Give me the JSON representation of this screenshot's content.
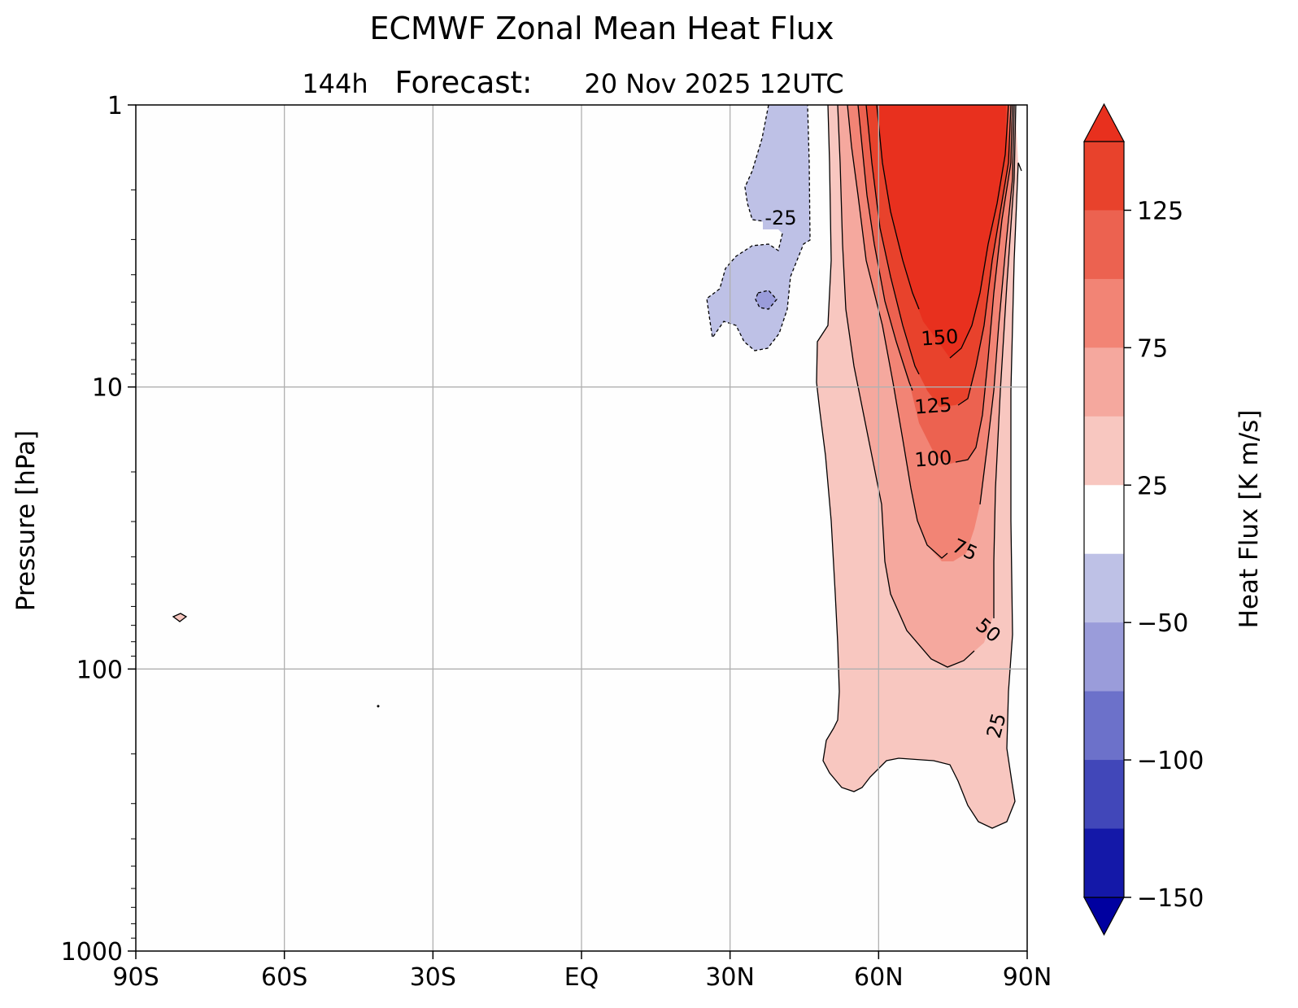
{
  "chart_data": {
    "type": "heatmap",
    "title": "ECMWF Zonal Mean Heat Flux",
    "subtitle": {
      "lead": "144h",
      "label": "Forecast:",
      "date": "20 Nov 2025  12UTC"
    },
    "xlabel": "",
    "ylabel": "Pressure [hPa]",
    "x_ticks": [
      "90S",
      "60S",
      "30S",
      "EQ",
      "30N",
      "60N",
      "90N"
    ],
    "y_ticks": [
      "1",
      "10",
      "100",
      "1000"
    ],
    "xlim": [
      -90,
      90
    ],
    "ylim_hpa": [
      1000,
      1
    ],
    "y_scale": "log",
    "grid": true,
    "colorbar": {
      "label": "Heat Flux [K  m/s]",
      "levels": [
        -150,
        -125,
        -100,
        -75,
        -50,
        -25,
        25,
        50,
        75,
        100,
        125,
        150
      ],
      "tick_labels": [
        "125",
        "75",
        "25",
        "−50",
        "−100",
        "−150"
      ],
      "tick_values": [
        125,
        75,
        25,
        -50,
        -100,
        -150
      ],
      "extend": "both",
      "colors_high_to_low": [
        "#e8301e",
        "#e8422c",
        "#ec6250",
        "#f28475",
        "#f5a89e",
        "#f8c7c0",
        "#ffffff",
        "#bec1e6",
        "#9a9cda",
        "#6c71ca",
        "#4147b9",
        "#1418a8",
        "#0000a0"
      ]
    },
    "contour_labels": [
      "-25",
      "150",
      "125",
      "100",
      "75",
      "50",
      "25"
    ],
    "features": [
      {
        "name": "positive heat flux maximum",
        "lat_range": [
          48,
          89
        ],
        "p_range_hpa": [
          1,
          360
        ],
        "max_value": ">150",
        "peak_lat": 75,
        "peak_p_hpa": 1
      },
      {
        "name": "negative heat flux region",
        "lat_range": [
          26,
          46
        ],
        "p_range_hpa": [
          1,
          9
        ],
        "min_value": -50,
        "center_lat": 37,
        "center_p_hpa": 5
      }
    ]
  }
}
